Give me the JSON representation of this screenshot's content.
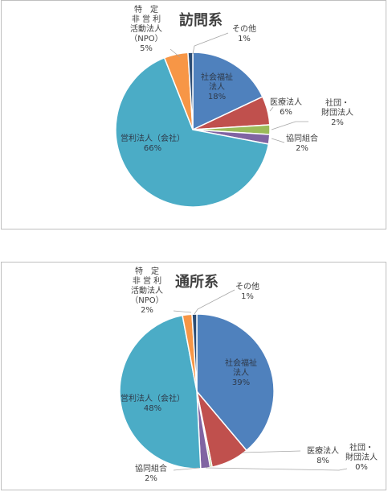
{
  "chart_data": [
    {
      "type": "pie",
      "title": "訪問系",
      "categories": [
        "社会福祉法人",
        "医療法人",
        "社団・財団法人",
        "協同組合",
        "営利法人（会社）",
        "特定非営利活動法人（NPO）",
        "その他"
      ],
      "values": [
        18,
        6,
        2,
        2,
        66,
        5,
        1
      ],
      "labels": [
        {
          "lines": [
            "社会福祉",
            "法人",
            "18%"
          ]
        },
        {
          "lines": [
            "医療法人",
            "6%"
          ]
        },
        {
          "lines": [
            "社団・",
            "財団法人",
            "2%"
          ]
        },
        {
          "lines": [
            "協同組合",
            "2%"
          ]
        },
        {
          "lines": [
            "営利法人（会社）",
            "66%"
          ]
        },
        {
          "lines": [
            "特　定",
            "非 営 利",
            "活動法人",
            "（NPO）",
            "5%"
          ]
        },
        {
          "lines": [
            "その他",
            "1%"
          ]
        }
      ]
    },
    {
      "type": "pie",
      "title": "通所系",
      "categories": [
        "社会福祉法人",
        "医療法人",
        "社団・財団法人",
        "協同組合",
        "営利法人（会社）",
        "特定非営利活動法人（NPO）",
        "その他"
      ],
      "values": [
        39,
        8,
        0.4,
        2,
        48,
        2,
        1
      ],
      "labels": [
        {
          "lines": [
            "社会福祉",
            "法人",
            "39%"
          ]
        },
        {
          "lines": [
            "医療法人",
            "8%"
          ]
        },
        {
          "lines": [
            "社団・",
            "財団法人",
            "0%"
          ]
        },
        {
          "lines": [
            "協同組合",
            "2%"
          ]
        },
        {
          "lines": [
            "営利法人（会社）",
            "48%"
          ]
        },
        {
          "lines": [
            "特　定",
            "非 営 利",
            "活動法人",
            "（NPO）",
            "2%"
          ]
        },
        {
          "lines": [
            "その他",
            "1%"
          ]
        }
      ]
    }
  ],
  "colors": [
    "#4f81bd",
    "#c0504d",
    "#9bbb59",
    "#8064a2",
    "#4bacc6",
    "#f79646",
    "#2c4d75"
  ]
}
